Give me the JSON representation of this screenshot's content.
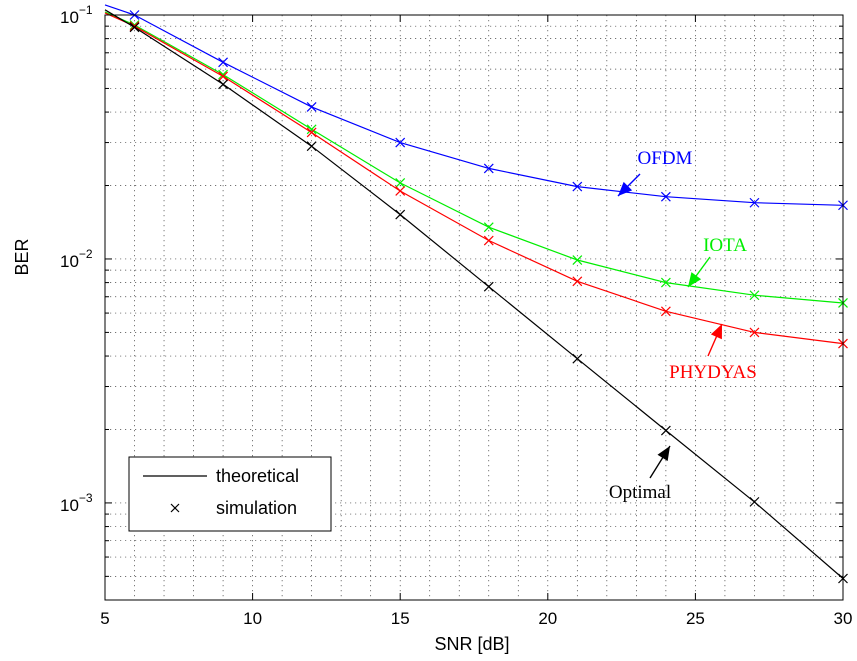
{
  "chart_data": {
    "type": "line",
    "xlabel": "SNR [dB]",
    "ylabel": "BER",
    "xlim": [
      5,
      30
    ],
    "ylim": [
      0.0004,
      0.1
    ],
    "yscale": "log",
    "grid": true,
    "xticks": [
      "5",
      "10",
      "15",
      "20",
      "25",
      "30"
    ],
    "yticks": [
      {
        "base": "10",
        "exp": "−1"
      },
      {
        "base": "10",
        "exp": "−2"
      },
      {
        "base": "10",
        "exp": "−3"
      }
    ],
    "series": [
      {
        "name": "OFDM",
        "color": "#0000ff",
        "x": [
          5,
          6,
          9,
          12,
          15,
          18,
          21,
          24,
          27,
          30
        ],
        "y": [
          0.11,
          0.1,
          0.064,
          0.042,
          0.03,
          0.0235,
          0.0198,
          0.018,
          0.017,
          0.0166
        ]
      },
      {
        "name": "IOTA",
        "color": "#00ee00",
        "x": [
          5,
          6,
          9,
          12,
          15,
          18,
          21,
          24,
          27,
          30
        ],
        "y": [
          0.103,
          0.091,
          0.057,
          0.034,
          0.0205,
          0.0135,
          0.0099,
          0.008,
          0.0071,
          0.0066
        ]
      },
      {
        "name": "PHYDYAS",
        "color": "#ff0000",
        "x": [
          5,
          6,
          9,
          12,
          15,
          18,
          21,
          24,
          27,
          30
        ],
        "y": [
          0.102,
          0.09,
          0.056,
          0.033,
          0.019,
          0.0119,
          0.0081,
          0.0061,
          0.005,
          0.0045
        ]
      },
      {
        "name": "Optimal",
        "color": "#000000",
        "x": [
          5,
          6,
          9,
          12,
          15,
          18,
          21,
          24,
          27,
          30
        ],
        "y": [
          0.105,
          0.089,
          0.052,
          0.029,
          0.0152,
          0.0077,
          0.0039,
          0.00198,
          0.00101,
          0.00049
        ]
      }
    ],
    "annotations": [
      {
        "text": "OFDM",
        "color": "#0000ff"
      },
      {
        "text": "IOTA",
        "color": "#00ee00"
      },
      {
        "text": "PHYDYAS",
        "color": "#ff0000"
      },
      {
        "text": "Optimal",
        "color": "#000000"
      }
    ],
    "legend": {
      "placement": "bottom-left",
      "entries": [
        {
          "label": "theoretical",
          "marker": "line"
        },
        {
          "label": "simulation",
          "marker": "x"
        }
      ]
    }
  }
}
